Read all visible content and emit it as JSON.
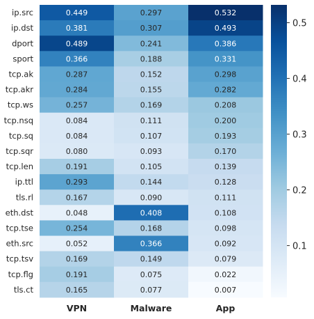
{
  "chart_data": {
    "type": "heatmap",
    "columns": [
      "VPN",
      "Malware",
      "App"
    ],
    "rows": [
      "ip.src",
      "ip.dst",
      "dport",
      "sport",
      "tcp.ak",
      "tcp.akr",
      "tcp.ws",
      "tcp.nsq",
      "tcp.sq",
      "tcp.sqr",
      "tcp.len",
      "ip.ttl",
      "tls.rl",
      "eth.dst",
      "tcp.tse",
      "eth.src",
      "tcp.tsv",
      "tcp.flg",
      "tls.ct"
    ],
    "values": [
      [
        0.449,
        0.297,
        0.532
      ],
      [
        0.381,
        0.307,
        0.493
      ],
      [
        0.489,
        0.241,
        0.386
      ],
      [
        0.366,
        0.188,
        0.331
      ],
      [
        0.287,
        0.152,
        0.298
      ],
      [
        0.284,
        0.155,
        0.282
      ],
      [
        0.257,
        0.169,
        0.208
      ],
      [
        0.084,
        0.111,
        0.2
      ],
      [
        0.084,
        0.107,
        0.193
      ],
      [
        0.08,
        0.093,
        0.17
      ],
      [
        0.191,
        0.105,
        0.139
      ],
      [
        0.293,
        0.144,
        0.128
      ],
      [
        0.167,
        0.09,
        0.111
      ],
      [
        0.048,
        0.408,
        0.108
      ],
      [
        0.254,
        0.168,
        0.098
      ],
      [
        0.052,
        0.366,
        0.092
      ],
      [
        0.169,
        0.149,
        0.079
      ],
      [
        0.191,
        0.075,
        0.022
      ],
      [
        0.165,
        0.077,
        0.007
      ]
    ],
    "value_format": "3 decimals",
    "colormap": "Blues",
    "colorbar": {
      "range": [
        0.007,
        0.532
      ],
      "ticks": [
        0.1,
        0.2,
        0.3,
        0.4,
        0.5
      ],
      "tick_labels": [
        "0.1",
        "0.2",
        "0.3",
        "0.4",
        "0.5"
      ]
    },
    "colors": {
      "low": "#f7fbff",
      "high": "#08306b",
      "text_dark": "#262626",
      "text_light": "#ffffff"
    }
  }
}
